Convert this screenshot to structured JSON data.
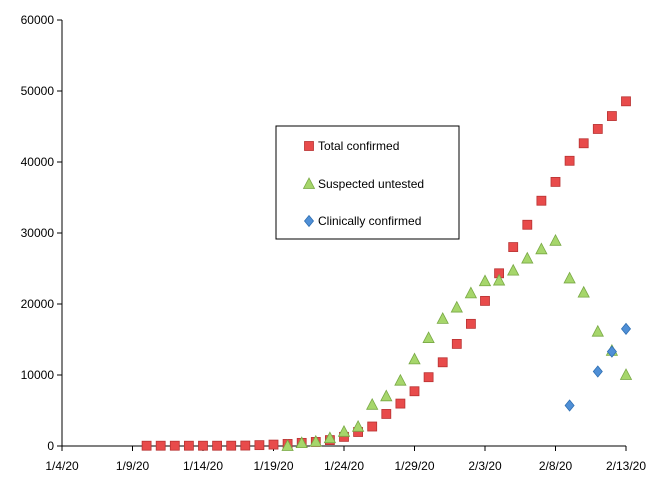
{
  "chart_data": {
    "type": "scatter",
    "title": "",
    "xlabel": "",
    "ylabel": "",
    "xlim": [
      "2020-01-04",
      "2020-02-13"
    ],
    "ylim": [
      0,
      60000
    ],
    "x_ticks": [
      "1/4/20",
      "1/9/20",
      "1/14/20",
      "1/19/20",
      "1/24/20",
      "1/29/20",
      "2/3/20",
      "2/8/20",
      "2/13/20"
    ],
    "y_ticks": [
      "0",
      "10000",
      "20000",
      "30000",
      "40000",
      "50000",
      "60000"
    ],
    "grid": false,
    "legend_position": "center",
    "series": [
      {
        "name": "Total confirmed",
        "marker": "square",
        "color": "#e84b4b",
        "x": [
          "2020-01-10",
          "2020-01-11",
          "2020-01-12",
          "2020-01-13",
          "2020-01-14",
          "2020-01-15",
          "2020-01-16",
          "2020-01-17",
          "2020-01-18",
          "2020-01-19",
          "2020-01-20",
          "2020-01-21",
          "2020-01-22",
          "2020-01-23",
          "2020-01-24",
          "2020-01-25",
          "2020-01-26",
          "2020-01-27",
          "2020-01-28",
          "2020-01-29",
          "2020-01-30",
          "2020-01-31",
          "2020-02-01",
          "2020-02-02",
          "2020-02-03",
          "2020-02-04",
          "2020-02-05",
          "2020-02-06",
          "2020-02-07",
          "2020-02-08",
          "2020-02-09",
          "2020-02-10",
          "2020-02-11",
          "2020-02-12",
          "2020-02-13"
        ],
        "y": [
          41,
          41,
          41,
          41,
          41,
          41,
          45,
          62,
          121,
          198,
          291,
          440,
          571,
          830,
          1287,
          1975,
          2744,
          4515,
          5974,
          7711,
          9692,
          11791,
          14380,
          17205,
          20438,
          24324,
          28018,
          31161,
          34546,
          37198,
          40171,
          42638,
          44653,
          46472,
          48548
        ]
      },
      {
        "name": "Suspected untested",
        "marker": "triangle",
        "color": "#a6d66b",
        "x": [
          "2020-01-20",
          "2020-01-21",
          "2020-01-22",
          "2020-01-23",
          "2020-01-24",
          "2020-01-25",
          "2020-01-26",
          "2020-01-27",
          "2020-01-28",
          "2020-01-29",
          "2020-01-30",
          "2020-01-31",
          "2020-02-01",
          "2020-02-02",
          "2020-02-03",
          "2020-02-04",
          "2020-02-05",
          "2020-02-06",
          "2020-02-07",
          "2020-02-08",
          "2020-02-09",
          "2020-02-10",
          "2020-02-11",
          "2020-02-12",
          "2020-02-13"
        ],
        "y": [
          0,
          400,
          600,
          1100,
          2000,
          2700,
          5800,
          7000,
          9200,
          12200,
          15200,
          17900,
          19500,
          21500,
          23200,
          23300,
          24700,
          26400,
          27700,
          28900,
          23600,
          21600,
          16100,
          13400,
          10000
        ]
      },
      {
        "name": "Clinically confirmed",
        "marker": "diamond",
        "color": "#4f8fd6",
        "x": [
          "2020-02-09",
          "2020-02-11",
          "2020-02-12",
          "2020-02-13"
        ],
        "y": [
          5700,
          10500,
          13300,
          16500
        ]
      }
    ]
  }
}
